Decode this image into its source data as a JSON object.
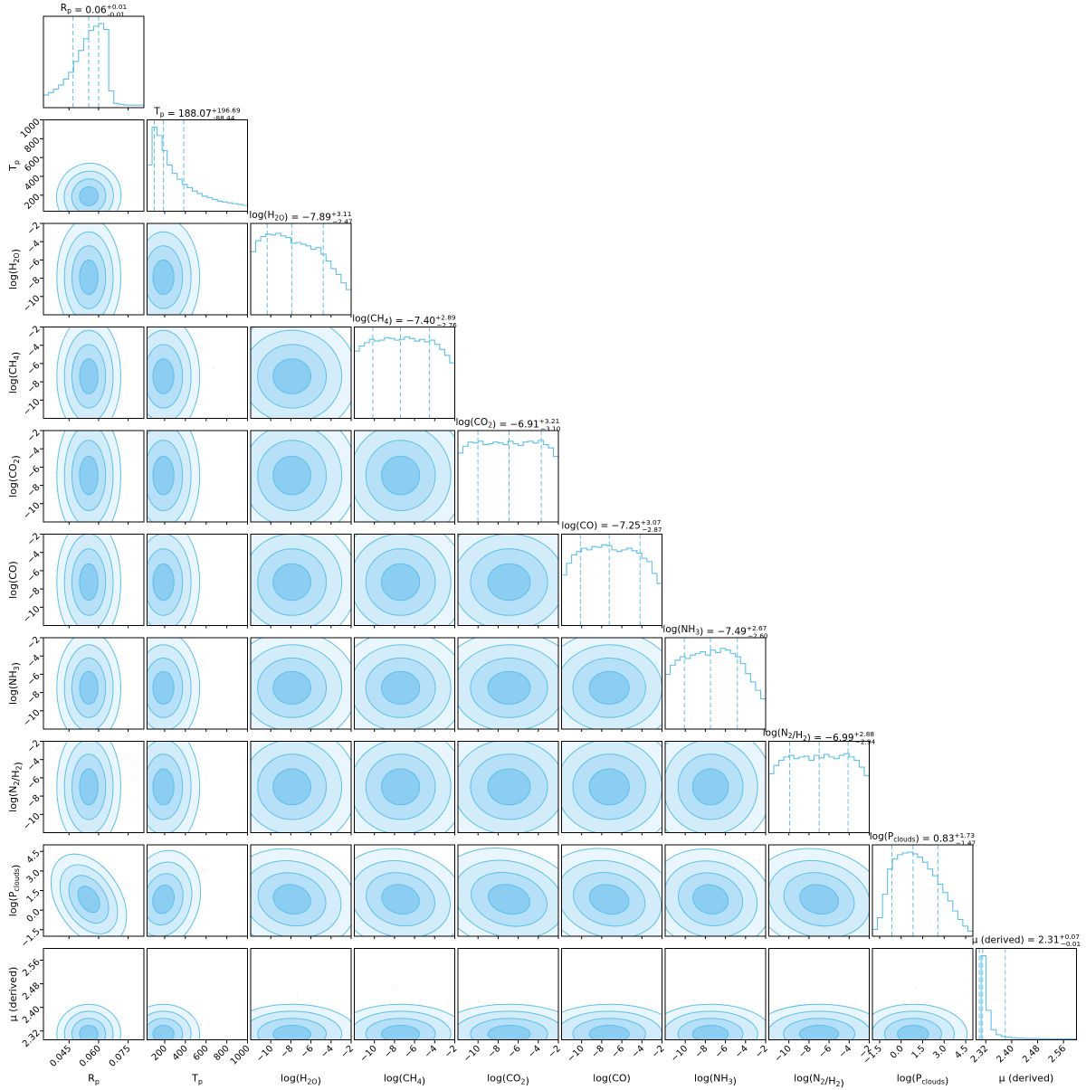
{
  "chart_data": {
    "type": "corner",
    "colors": {
      "line": "#5bc0eb",
      "fill": "#a6dcf5",
      "fill_dark": "#7cc4ef",
      "axis": "#000000"
    },
    "parameters": [
      {
        "id": "Rp",
        "axis_label": "R_p",
        "title": "R_p = 0.06^{+0.01}_{-0.01}",
        "range": [
          0.032,
          0.083
        ],
        "ticks": [
          0.045,
          0.06,
          0.075
        ],
        "tick_labels": [
          "0.045",
          "0.060",
          "0.075"
        ],
        "quantiles": [
          0.047,
          0.055,
          0.06
        ]
      },
      {
        "id": "Tp",
        "axis_label": "T_p",
        "title": "T_p = 188.07^{+196.69}_{-88.44}",
        "range": [
          30,
          1000
        ],
        "ticks": [
          200,
          400,
          600,
          800,
          1000
        ],
        "tick_labels": [
          "200",
          "400",
          "600",
          "800",
          "1000"
        ],
        "quantiles": [
          100,
          188,
          385
        ]
      },
      {
        "id": "H2O",
        "axis_label": "log(H_2O)",
        "title": "log(H_2O) = −7.89^{+3.11}_{−2.47}",
        "range": [
          -12,
          -2
        ],
        "ticks": [
          -10,
          -8,
          -6,
          -4,
          -2
        ],
        "tick_labels": [
          "−10",
          "−8",
          "−6",
          "−4",
          "−2"
        ],
        "quantiles": [
          -10.36,
          -7.89,
          -4.78
        ]
      },
      {
        "id": "CH4",
        "axis_label": "log(CH_4)",
        "title": "log(CH_4) = −7.40^{+2.89}_{−2.76}",
        "range": [
          -12,
          -2
        ],
        "ticks": [
          -10,
          -8,
          -6,
          -4,
          -2
        ],
        "tick_labels": [
          "−10",
          "−8",
          "−6",
          "−4",
          "−2"
        ],
        "quantiles": [
          -10.16,
          -7.4,
          -4.51
        ]
      },
      {
        "id": "CO2",
        "axis_label": "log(CO_2)",
        "title": "log(CO_2) = −6.91^{+3.21}_{−3.10}",
        "range": [
          -12,
          -2
        ],
        "ticks": [
          -10,
          -8,
          -6,
          -4,
          -2
        ],
        "tick_labels": [
          "−10",
          "−8",
          "−6",
          "−4",
          "−2"
        ],
        "quantiles": [
          -10.01,
          -6.91,
          -3.7
        ]
      },
      {
        "id": "CO",
        "axis_label": "log(CO)",
        "title": "log(CO) = −7.25^{+3.07}_{−2.87}",
        "range": [
          -12,
          -2
        ],
        "ticks": [
          -10,
          -8,
          -6,
          -4,
          -2
        ],
        "tick_labels": [
          "−10",
          "−8",
          "−6",
          "−4",
          "−2"
        ],
        "quantiles": [
          -10.12,
          -7.25,
          -4.18
        ]
      },
      {
        "id": "NH3",
        "axis_label": "log(NH_3)",
        "title": "log(NH_3) = −7.49^{+2.67}_{−2.60}",
        "range": [
          -12,
          -2
        ],
        "ticks": [
          -10,
          -8,
          -6,
          -4,
          -2
        ],
        "tick_labels": [
          "−10",
          "−8",
          "−6",
          "−4",
          "−2"
        ],
        "quantiles": [
          -10.09,
          -7.49,
          -4.82
        ]
      },
      {
        "id": "N2H2",
        "axis_label": "log(N_2/H_2)",
        "title": "log(N_2/H_2) = −6.99^{+2.88}_{−2.94}",
        "range": [
          -12,
          -2
        ],
        "ticks": [
          -10,
          -8,
          -6,
          -4,
          -2
        ],
        "tick_labels": [
          "−10",
          "−8",
          "−6",
          "−4",
          "−2"
        ],
        "quantiles": [
          -9.93,
          -6.99,
          -4.11
        ]
      },
      {
        "id": "Pclouds",
        "axis_label": "log(P_clouds)",
        "title": "log(P_clouds) = 0.83^{+1.73}_{−1.47}",
        "range": [
          -2.0,
          5.0
        ],
        "ticks": [
          -1.5,
          0.0,
          1.5,
          3.0,
          4.5
        ],
        "tick_labels": [
          "−1.5",
          "0.0",
          "1.5",
          "3.0",
          "4.5"
        ],
        "quantiles": [
          -0.64,
          0.83,
          2.56
        ]
      },
      {
        "id": "mu",
        "axis_label": "μ (derived)",
        "title": "μ (derived) = 2.31^{+0.07}_{−0.01}",
        "range": [
          2.29,
          2.6
        ],
        "ticks": [
          2.32,
          2.4,
          2.48,
          2.56
        ],
        "tick_labels": [
          "2.32",
          "2.40",
          "2.48",
          "2.56"
        ],
        "quantiles": [
          2.3,
          2.31,
          2.38
        ]
      }
    ],
    "marginals": {
      "Rp": [
        0.15,
        0.18,
        0.22,
        0.27,
        0.34,
        0.42,
        0.55,
        0.68,
        0.82,
        0.92,
        0.97,
        1.0,
        0.93,
        0.2,
        0.05,
        0.04,
        0.03,
        0.03,
        0.03,
        0.03
      ],
      "Tp": [
        0.55,
        1.0,
        0.9,
        0.72,
        0.55,
        0.45,
        0.38,
        0.32,
        0.28,
        0.24,
        0.21,
        0.18,
        0.16,
        0.14,
        0.12,
        0.11,
        0.1,
        0.09,
        0.08,
        0.07
      ],
      "H2O": [
        0.75,
        0.88,
        0.93,
        0.96,
        0.95,
        0.97,
        0.94,
        0.92,
        0.85,
        0.86,
        0.84,
        0.82,
        0.78,
        0.8,
        0.72,
        0.64,
        0.55,
        0.48,
        0.38,
        0.3
      ],
      "CH4": [
        0.8,
        0.86,
        0.9,
        0.94,
        0.92,
        0.93,
        0.96,
        0.95,
        0.93,
        0.94,
        0.97,
        0.95,
        0.92,
        0.94,
        0.91,
        0.93,
        0.88,
        0.82,
        0.75,
        0.66
      ],
      "CO2": [
        0.82,
        0.9,
        0.95,
        0.94,
        0.96,
        0.92,
        0.93,
        0.95,
        0.94,
        0.92,
        0.96,
        0.93,
        0.91,
        0.95,
        0.96,
        0.94,
        0.97,
        0.92,
        0.88,
        0.78
      ],
      "CO": [
        0.6,
        0.74,
        0.84,
        0.88,
        0.92,
        0.9,
        0.94,
        0.93,
        0.96,
        0.95,
        0.9,
        0.88,
        0.9,
        0.92,
        0.89,
        0.86,
        0.8,
        0.76,
        0.62,
        0.5
      ],
      "NH3": [
        0.65,
        0.76,
        0.82,
        0.86,
        0.84,
        0.88,
        0.9,
        0.92,
        0.88,
        0.94,
        0.91,
        0.96,
        0.94,
        0.9,
        0.86,
        0.78,
        0.66,
        0.56,
        0.46,
        0.36
      ],
      "N2H2": [
        0.7,
        0.8,
        0.86,
        0.9,
        0.92,
        0.88,
        0.9,
        0.91,
        0.86,
        0.92,
        0.89,
        0.93,
        0.9,
        0.88,
        0.92,
        0.94,
        0.9,
        0.86,
        0.78,
        0.68
      ],
      "Pclouds": [
        0.08,
        0.22,
        0.5,
        0.8,
        0.92,
        0.97,
        0.99,
        1.0,
        0.98,
        0.94,
        0.88,
        0.8,
        0.72,
        0.62,
        0.52,
        0.42,
        0.3,
        0.2,
        0.12,
        0.06
      ],
      "mu": [
        0.0,
        1.0,
        0.35,
        0.12,
        0.06,
        0.04,
        0.03,
        0.025,
        0.02,
        0.018,
        0.016,
        0.015,
        0.014,
        0.013,
        0.012,
        0.012,
        0.011,
        0.011,
        0.01,
        0.01
      ]
    }
  }
}
